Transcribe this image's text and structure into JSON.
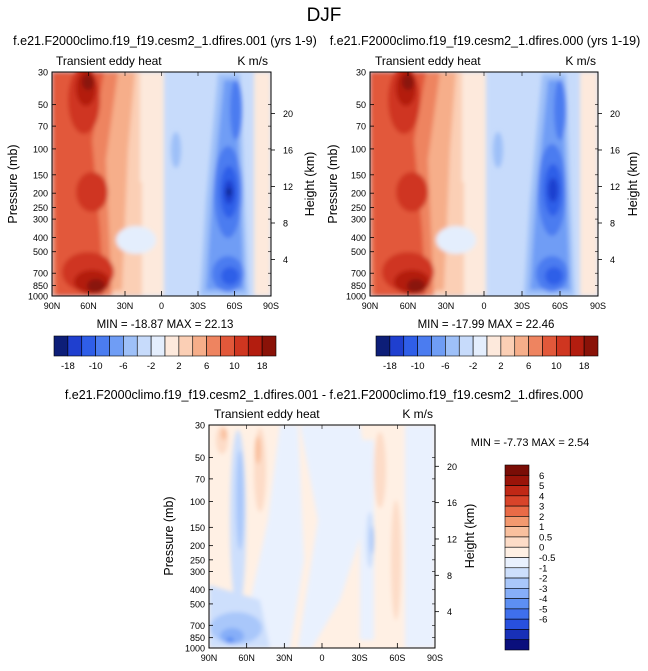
{
  "figure": {
    "title": "DJF",
    "colors": {
      "frame": "#000000",
      "scale18": [
        "#0d1e78",
        "#1f3fcf",
        "#2f5ee8",
        "#4b7cf0",
        "#6f9df5",
        "#9ec0f8",
        "#c7dbfb",
        "#e4eefd",
        "#fde9dc",
        "#fbcfb5",
        "#f6ae8a",
        "#ee8460",
        "#e2583a",
        "#cf3620",
        "#b31d0f",
        "#8a1208"
      ],
      "scale6": [
        "#0a0f7c",
        "#1830b8",
        "#2850de",
        "#3f6fec",
        "#5d8ff3",
        "#86aef8",
        "#a9c7fa",
        "#cddffc",
        "#e9f1fe",
        "#fff0e4",
        "#fddcc7",
        "#f9c09e",
        "#f3996f",
        "#e96b47",
        "#d8442a",
        "#c02816",
        "#9a1409",
        "#7a0d06"
      ]
    },
    "panels": [
      {
        "id": "panel-1",
        "header": "f.e21.F2000climo.f19_f19.cesm2_1.dfires.001 (yrs 1-9)",
        "left_string": "Transient eddy heat",
        "right_string": "K m/s",
        "stats": "MIN = -18.87  MAX = 22.13",
        "y_label": "Pressure (mb)",
        "y2_label": "Height (km)"
      },
      {
        "id": "panel-2",
        "header": "f.e21.F2000climo.f19_f19.cesm2_1.dfires.000 (yrs 1-19)",
        "left_string": "Transient eddy heat",
        "right_string": "K m/s",
        "stats": "MIN = -17.99  MAX = 22.46",
        "y_label": "Pressure (mb)",
        "y2_label": "Height (km)"
      },
      {
        "id": "panel-3",
        "header": "f.e21.F2000climo.f19_f19.cesm2_1.dfires.001 - f.e21.F2000climo.f19_f19.cesm2_1.dfires.000",
        "left_string": "Transient eddy heat",
        "right_string": "K m/s",
        "stats": "MIN = -7.73  MAX =  2.54",
        "y_label": "Pressure (mb)",
        "y2_label": "Height (km)"
      }
    ],
    "colorbar_a_labels": [
      "-18",
      "-10",
      "-6",
      "-2",
      "2",
      "6",
      "10",
      "18"
    ],
    "colorbar_b_labels": [
      "6",
      "5",
      "4",
      "3",
      "2",
      "1",
      "0.5",
      "0",
      "-0.5",
      "-1",
      "-2",
      "-3",
      "-4",
      "-5",
      "-6"
    ]
  },
  "chart_data": [
    {
      "type": "heatmap",
      "title": "f.e21.F2000climo.f19_f19.cesm2_1.dfires.001 (yrs 1-9)",
      "xlabel": "",
      "ylabel": "Pressure (mb)",
      "y2label": "Height (km)",
      "x_ticks": [
        "90N",
        "60N",
        "30N",
        "0",
        "30S",
        "60S",
        "90S"
      ],
      "y_ticks": [
        "30",
        "50",
        "70",
        "100",
        "150",
        "200",
        "250",
        "300",
        "400",
        "500",
        "700",
        "850",
        "1000"
      ],
      "y2_ticks": [
        "20",
        "16",
        "12",
        "8",
        "4"
      ],
      "xlim": [
        90,
        -90
      ],
      "ylim": [
        1000,
        30
      ],
      "y_scale": "log",
      "min": -18.87,
      "max": 22.13,
      "contour_levels": [
        -18,
        -14,
        -10,
        -8,
        -6,
        -4,
        -2,
        -1,
        1,
        2,
        4,
        6,
        8,
        10,
        14,
        18
      ],
      "features": [
        {
          "lat": 63,
          "p": 40,
          "value": 18
        },
        {
          "lat": 60,
          "p": 850,
          "value": 18
        },
        {
          "lat": 45,
          "p": 200,
          "value": 10
        },
        {
          "lat": -48,
          "p": 200,
          "value": -18
        },
        {
          "lat": -50,
          "p": 800,
          "value": -14
        },
        {
          "lat": -35,
          "p": 400,
          "value": -4
        }
      ]
    },
    {
      "type": "heatmap",
      "title": "f.e21.F2000climo.f19_f19.cesm2_1.dfires.000 (yrs 1-19)",
      "xlabel": "",
      "ylabel": "Pressure (mb)",
      "y2label": "Height (km)",
      "x_ticks": [
        "90N",
        "60N",
        "30N",
        "0",
        "30S",
        "60S",
        "90S"
      ],
      "y_ticks": [
        "30",
        "50",
        "70",
        "100",
        "150",
        "200",
        "250",
        "300",
        "400",
        "500",
        "700",
        "850",
        "1000"
      ],
      "y2_ticks": [
        "20",
        "16",
        "12",
        "8",
        "4"
      ],
      "xlim": [
        90,
        -90
      ],
      "ylim": [
        1000,
        30
      ],
      "y_scale": "log",
      "min": -17.99,
      "max": 22.46,
      "contour_levels": [
        -18,
        -14,
        -10,
        -8,
        -6,
        -4,
        -2,
        -1,
        1,
        2,
        4,
        6,
        8,
        10,
        14,
        18
      ],
      "features": [
        {
          "lat": 63,
          "p": 40,
          "value": 18
        },
        {
          "lat": 60,
          "p": 850,
          "value": 18
        },
        {
          "lat": 45,
          "p": 200,
          "value": 10
        },
        {
          "lat": -48,
          "p": 200,
          "value": -16
        },
        {
          "lat": -50,
          "p": 800,
          "value": -12
        },
        {
          "lat": -35,
          "p": 400,
          "value": -4
        }
      ]
    },
    {
      "type": "heatmap",
      "title": "f.e21.F2000climo.f19_f19.cesm2_1.dfires.001 - f.e21.F2000climo.f19_f19.cesm2_1.dfires.000",
      "xlabel": "",
      "ylabel": "Pressure (mb)",
      "y2label": "Height (km)",
      "x_ticks": [
        "90N",
        "60N",
        "30N",
        "0",
        "30S",
        "60S",
        "90S"
      ],
      "y_ticks": [
        "30",
        "50",
        "70",
        "100",
        "150",
        "200",
        "250",
        "300",
        "400",
        "500",
        "700",
        "850",
        "1000"
      ],
      "y2_ticks": [
        "20",
        "16",
        "12",
        "8",
        "4"
      ],
      "xlim": [
        90,
        -90
      ],
      "ylim": [
        1000,
        30
      ],
      "y_scale": "log",
      "min": -7.73,
      "max": 2.54,
      "contour_levels": [
        -6,
        -5,
        -4,
        -3,
        -2,
        -1,
        -0.5,
        0,
        0.5,
        1,
        2,
        3,
        4,
        5,
        6
      ],
      "features": [
        {
          "lat": 77,
          "p": 40,
          "value": 1
        },
        {
          "lat": 70,
          "p": 200,
          "value": -1
        },
        {
          "lat": 50,
          "p": 100,
          "value": 1
        },
        {
          "lat": -20,
          "p": 200,
          "value": -1
        },
        {
          "lat": -60,
          "p": 500,
          "value": -0.5
        },
        {
          "lat": 70,
          "p": 900,
          "value": -3
        }
      ]
    }
  ]
}
